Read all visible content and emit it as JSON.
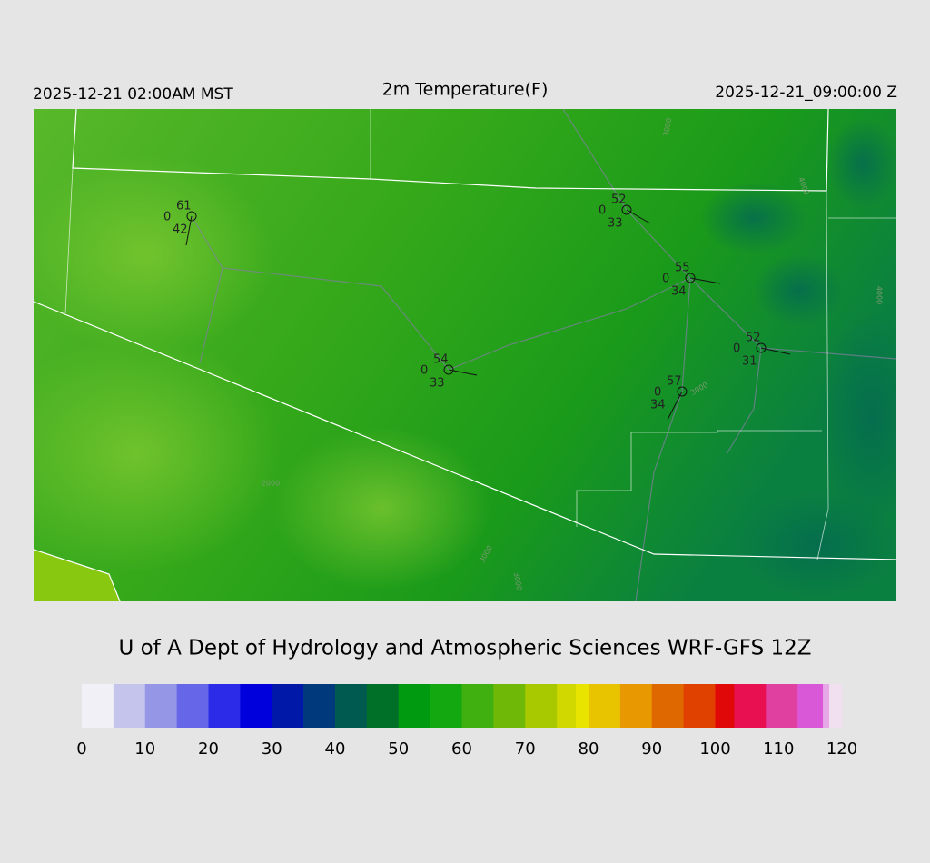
{
  "header": {
    "local_time": "2025-12-21 02:00AM MST",
    "title": "2m Temperature(F)",
    "utc_time": "2025-12-21_09:00:00 Z"
  },
  "stations": [
    {
      "temperature": 61,
      "cloud": 0,
      "dewpoint": 42
    },
    {
      "temperature": 52,
      "cloud": 0,
      "dewpoint": 33
    },
    {
      "temperature": 55,
      "cloud": 0,
      "dewpoint": 34
    },
    {
      "temperature": 52,
      "cloud": 0,
      "dewpoint": 31
    },
    {
      "temperature": 54,
      "cloud": 0,
      "dewpoint": 33
    },
    {
      "temperature": 57,
      "cloud": 0,
      "dewpoint": 34
    }
  ],
  "contour_labels": [
    "2000",
    "3000",
    "3000",
    "3000",
    "4000",
    "4000",
    "3000"
  ],
  "credit": "U of A Dept of Hydrology and Atmospheric Sciences WRF-GFS 12Z",
  "colorbar": {
    "range": [
      0,
      120
    ],
    "ticks": [
      0,
      10,
      20,
      30,
      40,
      50,
      60,
      70,
      80,
      90,
      100,
      110,
      120
    ],
    "stops": [
      {
        "value": 0,
        "color": "#f0f0f6"
      },
      {
        "value": 5,
        "color": "#c4c4ec"
      },
      {
        "value": 10,
        "color": "#9696e6"
      },
      {
        "value": 15,
        "color": "#6666e8"
      },
      {
        "value": 20,
        "color": "#2c2ce8"
      },
      {
        "value": 25,
        "color": "#0000dc"
      },
      {
        "value": 30,
        "color": "#0018a8"
      },
      {
        "value": 35,
        "color": "#003a7c"
      },
      {
        "value": 40,
        "color": "#005a50"
      },
      {
        "value": 45,
        "color": "#007028"
      },
      {
        "value": 50,
        "color": "#009a10"
      },
      {
        "value": 55,
        "color": "#14a810"
      },
      {
        "value": 60,
        "color": "#40b010"
      },
      {
        "value": 65,
        "color": "#70b808"
      },
      {
        "value": 70,
        "color": "#a8c800"
      },
      {
        "value": 75,
        "color": "#d0d800"
      },
      {
        "value": 78,
        "color": "#e8e400"
      },
      {
        "value": 80,
        "color": "#e8c400"
      },
      {
        "value": 85,
        "color": "#e89800"
      },
      {
        "value": 90,
        "color": "#e06800"
      },
      {
        "value": 95,
        "color": "#e04000"
      },
      {
        "value": 100,
        "color": "#e00808"
      },
      {
        "value": 103,
        "color": "#e81050"
      },
      {
        "value": 108,
        "color": "#e040a0"
      },
      {
        "value": 113,
        "color": "#d858d8"
      },
      {
        "value": 117,
        "color": "#e8a8e8"
      },
      {
        "value": 118,
        "color": "#f0e0f0"
      }
    ]
  }
}
